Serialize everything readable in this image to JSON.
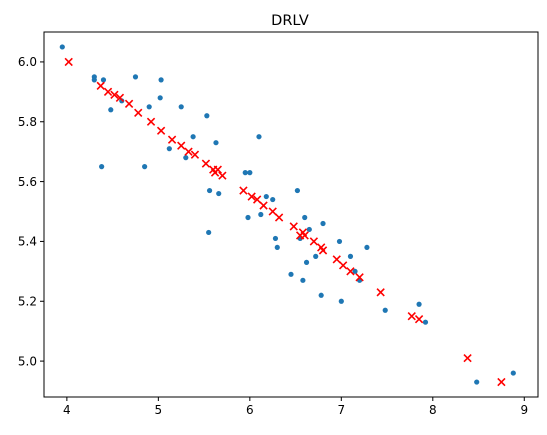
{
  "chart_data": {
    "type": "scatter",
    "title": "DRLV",
    "xlabel": "",
    "ylabel": "",
    "xlim": [
      3.75,
      9.15
    ],
    "ylim": [
      4.88,
      6.1
    ],
    "x_ticks": [
      4,
      5,
      6,
      7,
      8,
      9
    ],
    "y_ticks": [
      5.0,
      5.2,
      5.4,
      5.6,
      5.8,
      6.0
    ],
    "x_tick_labels": [
      "4",
      "5",
      "6",
      "7",
      "8",
      "9"
    ],
    "y_tick_labels": [
      "5.0",
      "5.2",
      "5.4",
      "5.6",
      "5.8",
      "6.0"
    ],
    "grid": false,
    "series": [
      {
        "marker": "dot",
        "color": "#1f77b4",
        "points": [
          [
            3.95,
            6.05
          ],
          [
            4.3,
            5.94
          ],
          [
            4.3,
            5.95
          ],
          [
            4.4,
            5.94
          ],
          [
            4.38,
            5.65
          ],
          [
            4.48,
            5.84
          ],
          [
            4.6,
            5.87
          ],
          [
            4.75,
            5.95
          ],
          [
            4.85,
            5.65
          ],
          [
            4.9,
            5.85
          ],
          [
            5.02,
            5.88
          ],
          [
            5.03,
            5.94
          ],
          [
            5.12,
            5.71
          ],
          [
            5.25,
            5.85
          ],
          [
            5.3,
            5.68
          ],
          [
            5.38,
            5.75
          ],
          [
            5.53,
            5.82
          ],
          [
            5.55,
            5.43
          ],
          [
            5.56,
            5.57
          ],
          [
            5.63,
            5.73
          ],
          [
            5.66,
            5.56
          ],
          [
            5.95,
            5.63
          ],
          [
            5.98,
            5.48
          ],
          [
            6.0,
            5.63
          ],
          [
            6.1,
            5.75
          ],
          [
            6.12,
            5.49
          ],
          [
            6.18,
            5.55
          ],
          [
            6.25,
            5.54
          ],
          [
            6.28,
            5.41
          ],
          [
            6.3,
            5.38
          ],
          [
            6.45,
            5.29
          ],
          [
            6.52,
            5.57
          ],
          [
            6.55,
            5.41
          ],
          [
            6.58,
            5.27
          ],
          [
            6.6,
            5.48
          ],
          [
            6.62,
            5.33
          ],
          [
            6.65,
            5.44
          ],
          [
            6.72,
            5.35
          ],
          [
            6.78,
            5.22
          ],
          [
            6.8,
            5.46
          ],
          [
            6.98,
            5.4
          ],
          [
            7.0,
            5.2
          ],
          [
            7.1,
            5.35
          ],
          [
            7.15,
            5.3
          ],
          [
            7.2,
            5.27
          ],
          [
            7.28,
            5.38
          ],
          [
            7.48,
            5.17
          ],
          [
            7.85,
            5.19
          ],
          [
            7.92,
            5.13
          ],
          [
            8.48,
            4.93
          ],
          [
            8.88,
            4.96
          ]
        ]
      },
      {
        "marker": "x",
        "color": "#ff0000",
        "points": [
          [
            4.02,
            6.0
          ],
          [
            4.37,
            5.92
          ],
          [
            4.45,
            5.9
          ],
          [
            4.52,
            5.89
          ],
          [
            4.58,
            5.88
          ],
          [
            4.68,
            5.86
          ],
          [
            4.78,
            5.83
          ],
          [
            4.92,
            5.8
          ],
          [
            5.03,
            5.77
          ],
          [
            5.15,
            5.74
          ],
          [
            5.25,
            5.72
          ],
          [
            5.33,
            5.7
          ],
          [
            5.4,
            5.69
          ],
          [
            5.52,
            5.66
          ],
          [
            5.6,
            5.64
          ],
          [
            5.62,
            5.63
          ],
          [
            5.65,
            5.64
          ],
          [
            5.7,
            5.62
          ],
          [
            5.93,
            5.57
          ],
          [
            6.02,
            5.55
          ],
          [
            6.08,
            5.54
          ],
          [
            6.15,
            5.52
          ],
          [
            6.25,
            5.5
          ],
          [
            6.32,
            5.48
          ],
          [
            6.48,
            5.45
          ],
          [
            6.55,
            5.42
          ],
          [
            6.58,
            5.43
          ],
          [
            6.6,
            5.42
          ],
          [
            6.7,
            5.4
          ],
          [
            6.78,
            5.38
          ],
          [
            6.8,
            5.37
          ],
          [
            6.95,
            5.34
          ],
          [
            7.02,
            5.32
          ],
          [
            7.1,
            5.3
          ],
          [
            7.2,
            5.28
          ],
          [
            7.43,
            5.23
          ],
          [
            7.77,
            5.15
          ],
          [
            7.85,
            5.14
          ],
          [
            8.38,
            5.01
          ],
          [
            8.75,
            4.93
          ]
        ]
      }
    ]
  }
}
